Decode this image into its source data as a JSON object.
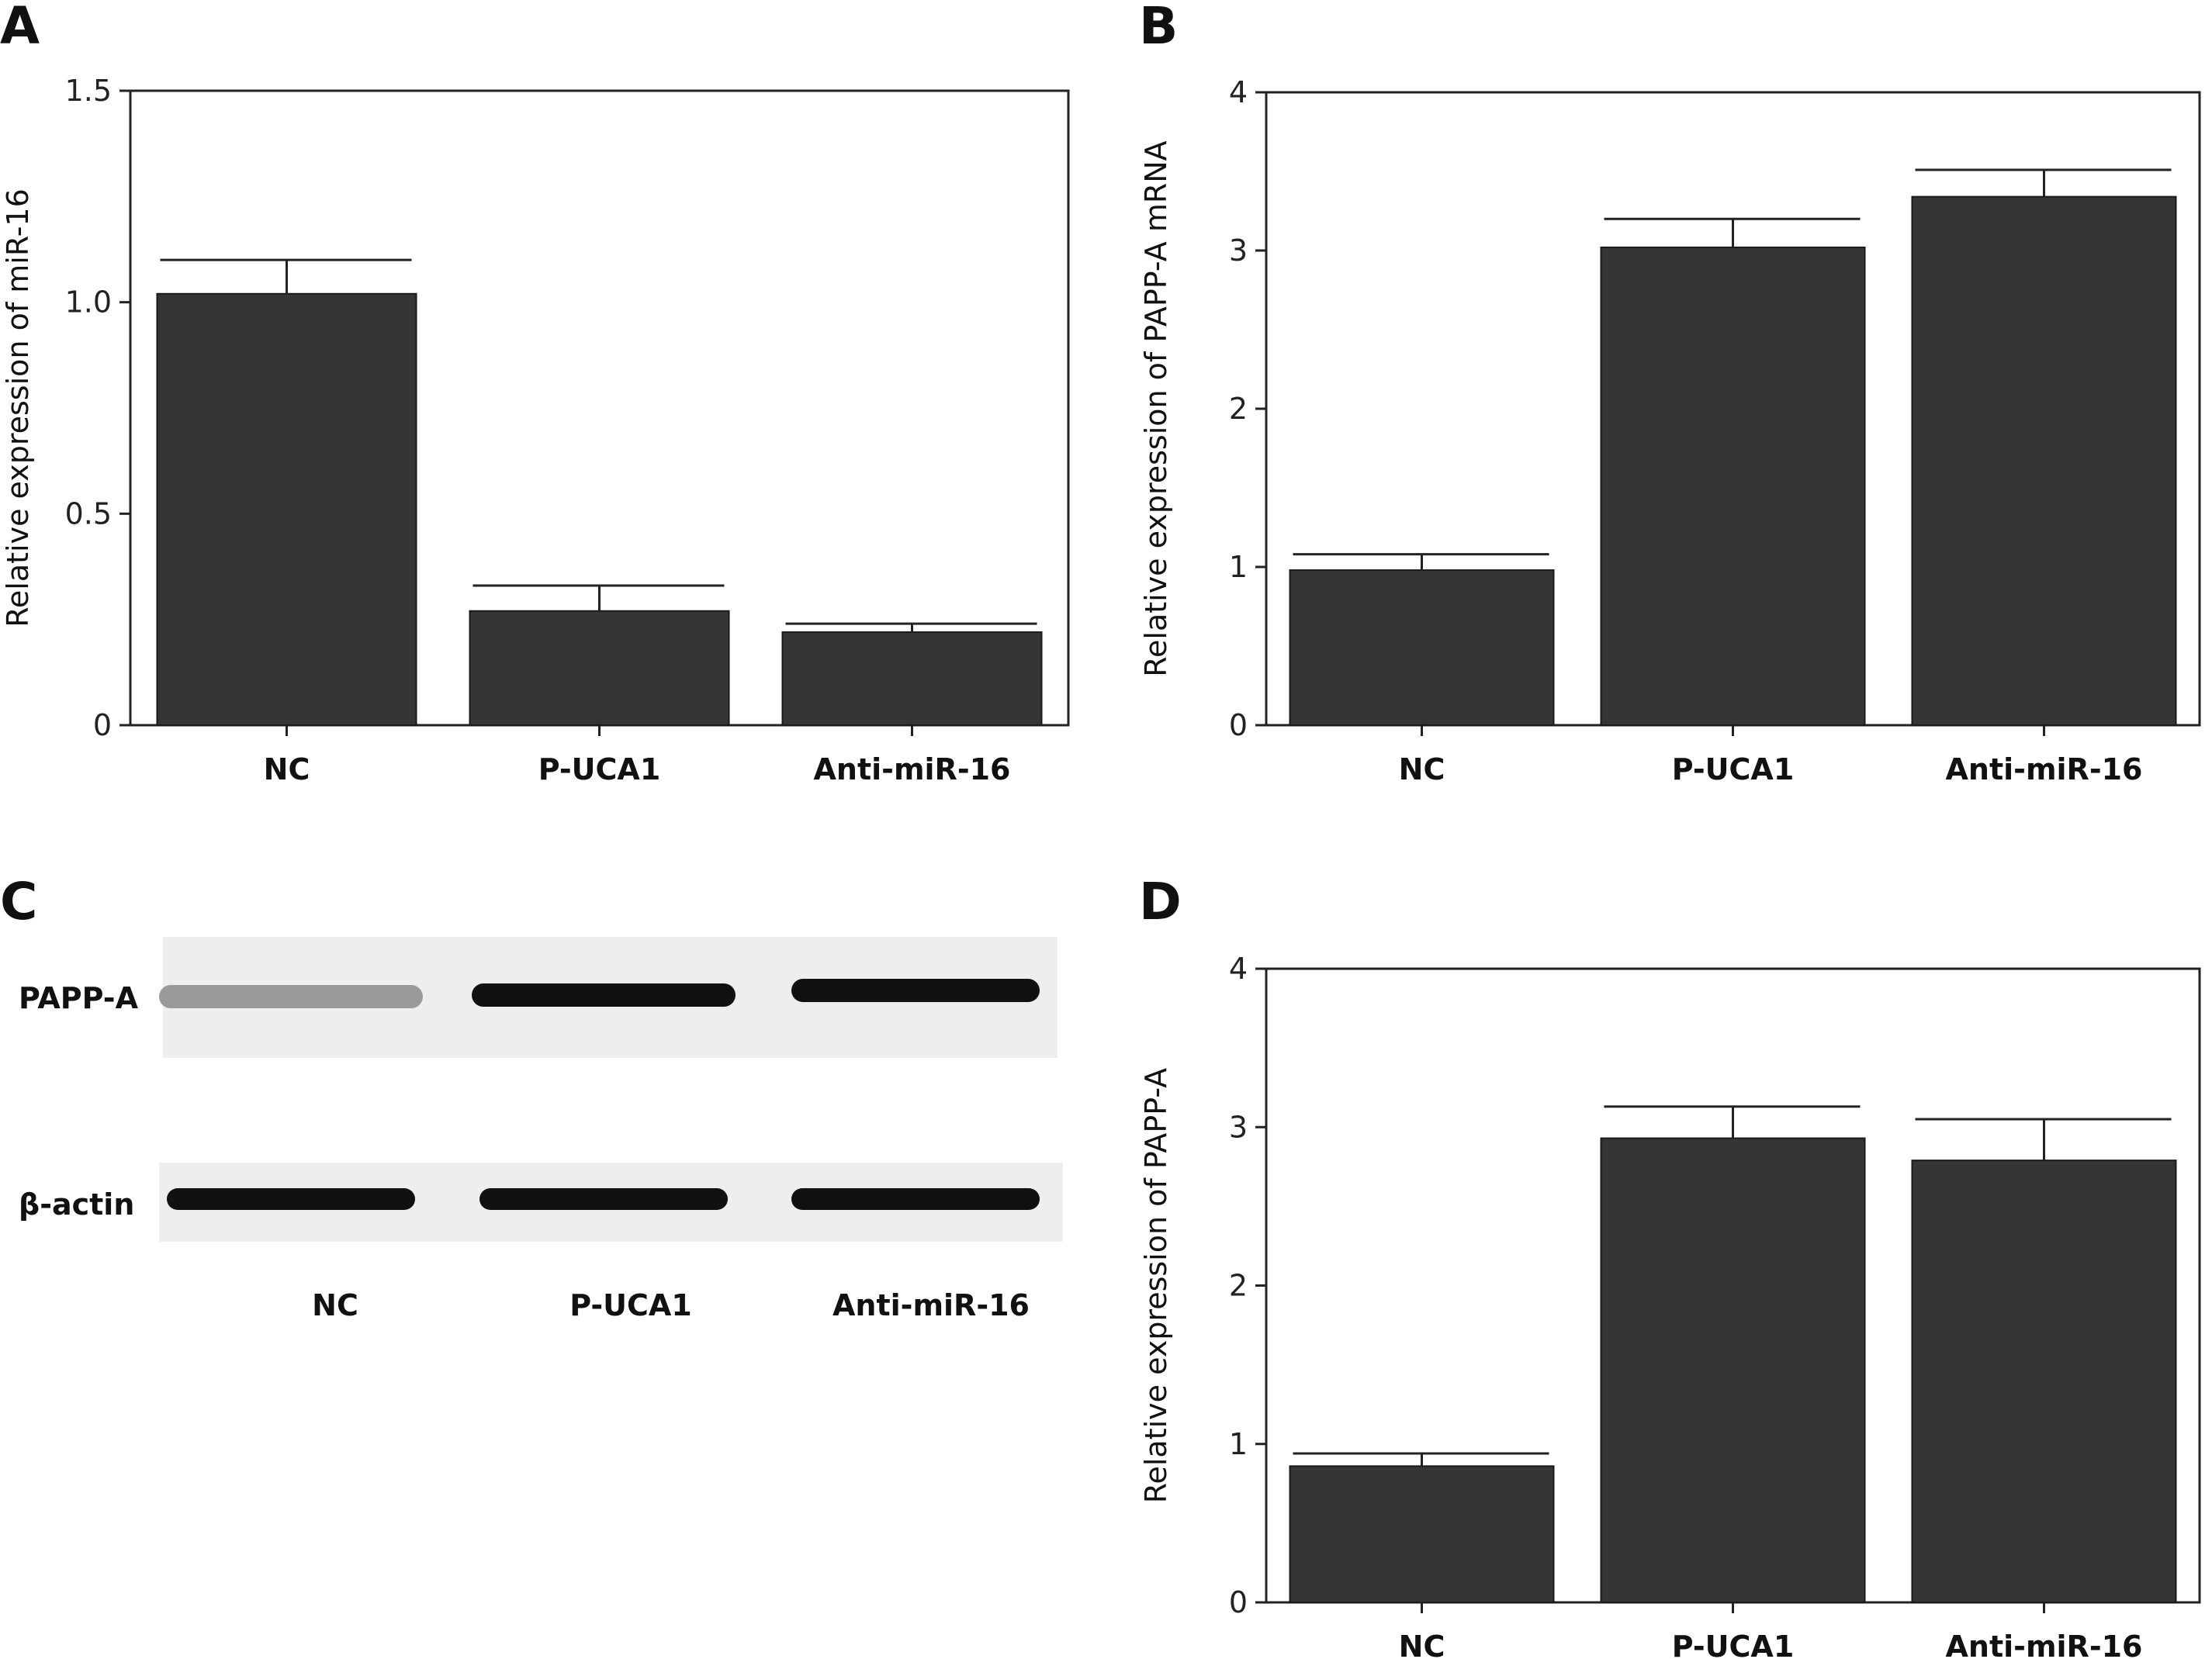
{
  "panels": {
    "A": {
      "letter": "A"
    },
    "B": {
      "letter": "B"
    },
    "C": {
      "letter": "C"
    },
    "D": {
      "letter": "D"
    }
  },
  "blot": {
    "protein_label": "PAPP-A",
    "control_label": "β-actin",
    "lanes": [
      "NC",
      "P-UCA1",
      "Anti-miR-16"
    ],
    "papp_intensity": [
      0.35,
      1.0,
      1.0
    ],
    "actin_intensity": [
      1.0,
      1.0,
      1.0
    ],
    "band_color": "#111111",
    "membrane_color": "#eeeeee"
  },
  "chart_data": [
    {
      "panel": "A",
      "type": "bar",
      "categories": [
        "NC",
        "P-UCA1",
        "Anti-miR-16"
      ],
      "values": [
        1.02,
        0.27,
        0.22
      ],
      "errors": [
        0.08,
        0.06,
        0.02
      ],
      "ylabel": "Relative expression of miR-16",
      "xlabel": "",
      "ylim": [
        0,
        1.5
      ],
      "yticks": [
        0,
        0.5,
        1.0,
        1.5
      ],
      "ytick_labels": [
        "0",
        "0.5",
        "1.0",
        "1.5"
      ],
      "bar_color": "#353535",
      "grid": false
    },
    {
      "panel": "B",
      "type": "bar",
      "categories": [
        "NC",
        "P-UCA1",
        "Anti-miR-16"
      ],
      "values": [
        0.98,
        3.02,
        3.34
      ],
      "errors": [
        0.1,
        0.18,
        0.17
      ],
      "ylabel": "Relative expression of PAPP-A mRNA",
      "xlabel": "",
      "ylim": [
        0,
        4
      ],
      "yticks": [
        0,
        1,
        2,
        3,
        4
      ],
      "ytick_labels": [
        "0",
        "1",
        "2",
        "3",
        "4"
      ],
      "bar_color": "#353535",
      "grid": false
    },
    {
      "panel": "D",
      "type": "bar",
      "categories": [
        "NC",
        "P-UCA1",
        "Anti-miR-16"
      ],
      "values": [
        0.86,
        2.93,
        2.79
      ],
      "errors": [
        0.08,
        0.2,
        0.26
      ],
      "ylabel": "Relative expression of PAPP-A",
      "xlabel": "",
      "ylim": [
        0,
        4
      ],
      "yticks": [
        0,
        1,
        2,
        3,
        4
      ],
      "ytick_labels": [
        "0",
        "1",
        "2",
        "3",
        "4"
      ],
      "bar_color": "#353535",
      "grid": false
    }
  ]
}
